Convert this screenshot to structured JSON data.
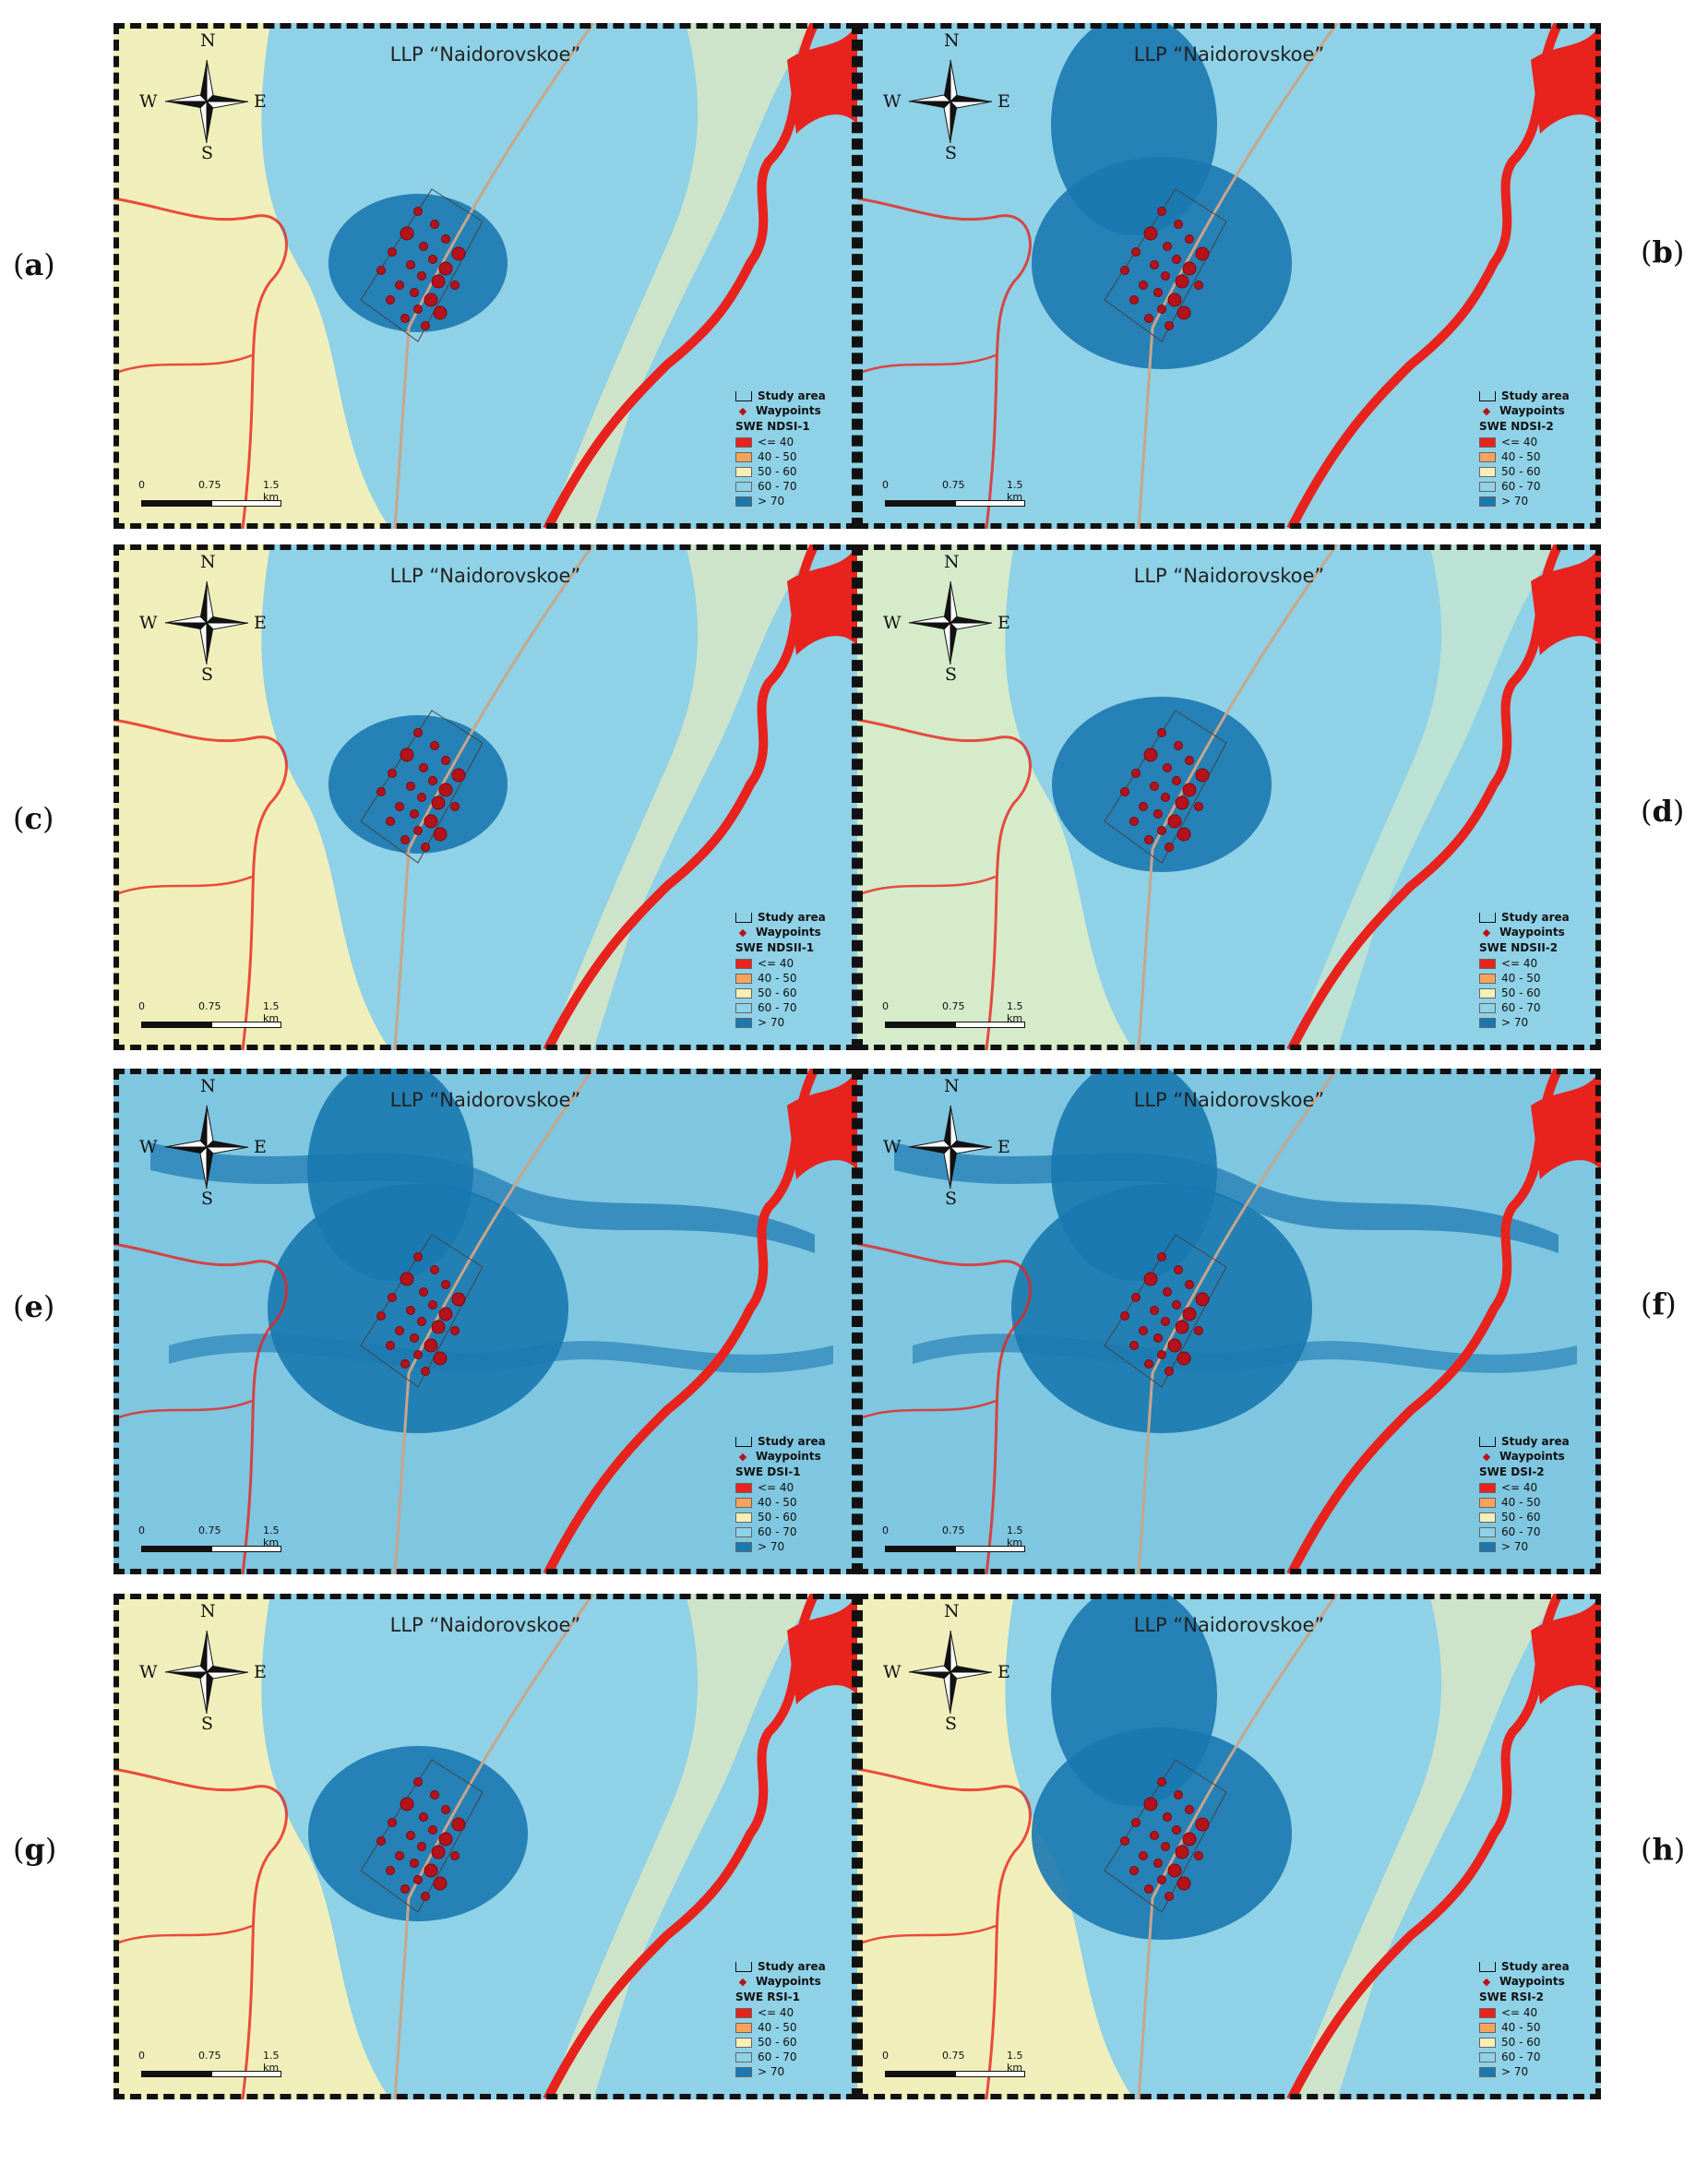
{
  "panels": [
    {
      "label_open": "(",
      "letter": "a",
      "label_close": ")",
      "title": "LLP “Naidorovskoe”",
      "index_name": "SWE NDSI-1",
      "background": "#8fd1e6",
      "outer": "#f6f0b8",
      "dark": "#1a78b0",
      "dark_level": 1
    },
    {
      "label_open": "(",
      "letter": "b",
      "label_close": ")",
      "title": "LLP “Naidorovskoe”",
      "index_name": "SWE NDSI-2",
      "background": "#8fd1e6",
      "outer": "#8fd1e6",
      "dark": "#1a78b0",
      "dark_level": 3
    },
    {
      "label_open": "(",
      "letter": "c",
      "label_close": ")",
      "title": "LLP “Naidorovskoe”",
      "index_name": "SWE NDSII-1",
      "background": "#8fd1e6",
      "outer": "#f6f0b8",
      "dark": "#1a78b0",
      "dark_level": 1
    },
    {
      "label_open": "(",
      "letter": "d",
      "label_close": ")",
      "title": "LLP “Naidorovskoe”",
      "index_name": "SWE NDSII-2",
      "background": "#8fd1e6",
      "outer": "#d9ecc8",
      "dark": "#1a78b0",
      "dark_level": 2
    },
    {
      "label_open": "(",
      "letter": "e",
      "label_close": ")",
      "title": "LLP “Naidorovskoe”",
      "index_name": "SWE DSI-1",
      "background": "#7fc6e0",
      "outer": "#7fc6e0",
      "dark": "#1a78b0",
      "dark_level": 4
    },
    {
      "label_open": "(",
      "letter": "f",
      "label_close": ")",
      "title": "LLP “Naidorovskoe”",
      "index_name": "SWE DSI-2",
      "background": "#7fc6e0",
      "outer": "#7fc6e0",
      "dark": "#1a78b0",
      "dark_level": 4
    },
    {
      "label_open": "(",
      "letter": "g",
      "label_close": ")",
      "title": "LLP “Naidorovskoe”",
      "index_name": "SWE RSI-1",
      "background": "#8fd1e6",
      "outer": "#f6f0b8",
      "dark": "#1a78b0",
      "dark_level": 2
    },
    {
      "label_open": "(",
      "letter": "h",
      "label_close": ")",
      "title": "LLP “Naidorovskoe”",
      "index_name": "SWE RSI-2",
      "background": "#8fd1e6",
      "outer": "#f6f0b8",
      "dark": "#1a78b0",
      "dark_level": 3
    }
  ],
  "compass": {
    "n": "N",
    "s": "S",
    "e": "E",
    "w": "W"
  },
  "legend": {
    "study_area": "Study area",
    "waypoints": "Waypoints",
    "classes": [
      {
        "label": "<= 40",
        "color": "#e8221c"
      },
      {
        "label": "40 - 50",
        "color": "#f7a35c"
      },
      {
        "label": "50 - 60",
        "color": "#f6f0b8"
      },
      {
        "label": "60 - 70",
        "color": "#8fd1e6"
      },
      {
        "label": "> 70",
        "color": "#1a78b0"
      }
    ]
  },
  "scale": {
    "t0": "0",
    "t1": "0.75",
    "t2": "1.5 km"
  }
}
